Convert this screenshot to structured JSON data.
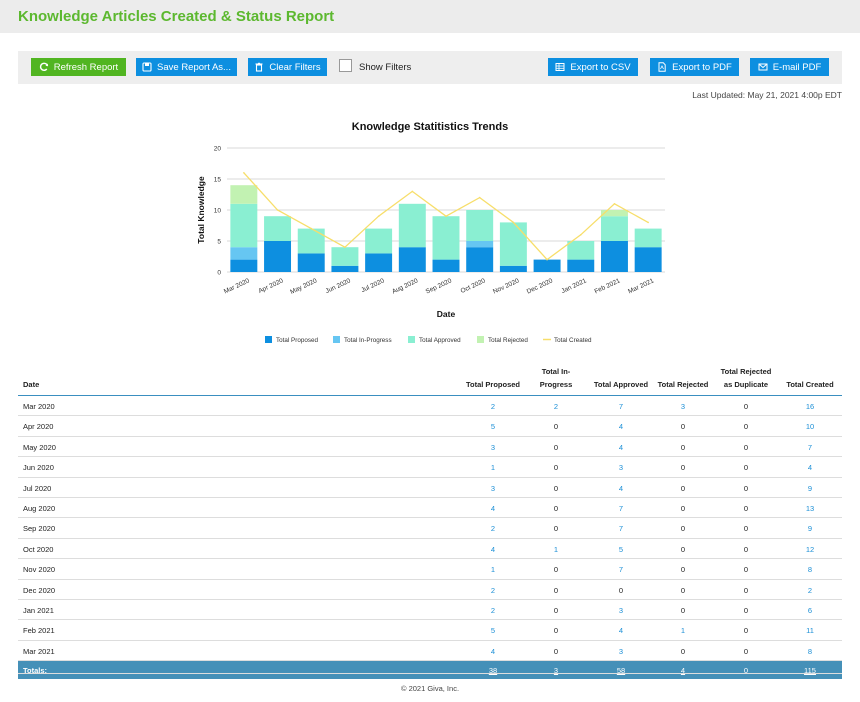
{
  "header": {
    "title": "Knowledge Articles Created & Status Report"
  },
  "toolbar": {
    "refresh_label": "Refresh Report",
    "save_label": "Save Report As...",
    "clear_label": "Clear Filters",
    "show_filters_label": "Show Filters",
    "export_csv_label": "Export to CSV",
    "export_pdf_label": "Export to PDF",
    "email_pdf_label": "E-mail PDF"
  },
  "last_updated": "Last Updated: May 21, 2021 4:00p EDT",
  "colors": {
    "proposed": "#0d8fe0",
    "in_progress": "#66c6f2",
    "approved": "#8aefd2",
    "rejected": "#c2f2b2",
    "created": "#f7de6a"
  },
  "chart_data": {
    "type": "bar",
    "stacked": true,
    "title": "Knowledge Statitistics Trends",
    "xlabel": "Date",
    "ylabel": "Total Knowledge",
    "ylim": [
      0,
      20
    ],
    "yticks": [
      0,
      5,
      10,
      15,
      20
    ],
    "categories": [
      "Mar 2020",
      "Apr 2020",
      "May 2020",
      "Jun 2020",
      "Jul 2020",
      "Aug 2020",
      "Sep 2020",
      "Oct 2020",
      "Nov 2020",
      "Dec 2020",
      "Jan 2021",
      "Feb 2021",
      "Mar 2021"
    ],
    "series": [
      {
        "name": "Total Proposed",
        "values": [
          2,
          5,
          3,
          1,
          3,
          4,
          2,
          4,
          1,
          2,
          2,
          5,
          4
        ]
      },
      {
        "name": "Total In-Progress",
        "values": [
          2,
          0,
          0,
          0,
          0,
          0,
          0,
          1,
          0,
          0,
          0,
          0,
          0
        ]
      },
      {
        "name": "Total Approved",
        "values": [
          7,
          4,
          4,
          3,
          4,
          7,
          7,
          5,
          7,
          0,
          3,
          4,
          3
        ]
      },
      {
        "name": "Total Rejected",
        "values": [
          3,
          0,
          0,
          0,
          0,
          0,
          0,
          0,
          0,
          0,
          0,
          1,
          0
        ]
      }
    ],
    "line_series": {
      "name": "Total Created",
      "values": [
        16,
        10,
        7,
        4,
        9,
        13,
        9,
        12,
        8,
        2,
        6,
        11,
        8
      ]
    },
    "legend": [
      "Total Proposed",
      "Total In-Progress",
      "Total Approved",
      "Total Rejected",
      "Total Created"
    ],
    "legend_position": "bottom"
  },
  "table": {
    "headers": {
      "date": "Date",
      "proposed": "Total Proposed",
      "in_progress_1": "Total In-",
      "in_progress_2": "Progress",
      "approved": "Total Approved",
      "rejected": "Total Rejected",
      "rejected_dup_1": "Total Rejected",
      "rejected_dup_2": "as Duplicate",
      "created": "Total Created"
    },
    "rows": [
      [
        "Mar 2020",
        "2",
        "2",
        "7",
        "3",
        "0",
        "16"
      ],
      [
        "Apr 2020",
        "5",
        "0",
        "4",
        "0",
        "0",
        "10"
      ],
      [
        "May 2020",
        "3",
        "0",
        "4",
        "0",
        "0",
        "7"
      ],
      [
        "Jun 2020",
        "1",
        "0",
        "3",
        "0",
        "0",
        "4"
      ],
      [
        "Jul 2020",
        "3",
        "0",
        "4",
        "0",
        "0",
        "9"
      ],
      [
        "Aug 2020",
        "4",
        "0",
        "7",
        "0",
        "0",
        "13"
      ],
      [
        "Sep 2020",
        "2",
        "0",
        "7",
        "0",
        "0",
        "9"
      ],
      [
        "Oct 2020",
        "4",
        "1",
        "5",
        "0",
        "0",
        "12"
      ],
      [
        "Nov 2020",
        "1",
        "0",
        "7",
        "0",
        "0",
        "8"
      ],
      [
        "Dec 2020",
        "2",
        "0",
        "0",
        "0",
        "0",
        "2"
      ],
      [
        "Jan 2021",
        "2",
        "0",
        "3",
        "0",
        "0",
        "6"
      ],
      [
        "Feb 2021",
        "5",
        "0",
        "4",
        "1",
        "0",
        "11"
      ],
      [
        "Mar 2021",
        "4",
        "0",
        "3",
        "0",
        "0",
        "8"
      ]
    ],
    "totals": {
      "label": "Totals:",
      "proposed": "38",
      "in_progress": "3",
      "approved": "58",
      "rejected": "4",
      "rejected_dup": "0",
      "created": "115"
    }
  },
  "footer": {
    "copyright": "© 2021 Giva, Inc."
  }
}
